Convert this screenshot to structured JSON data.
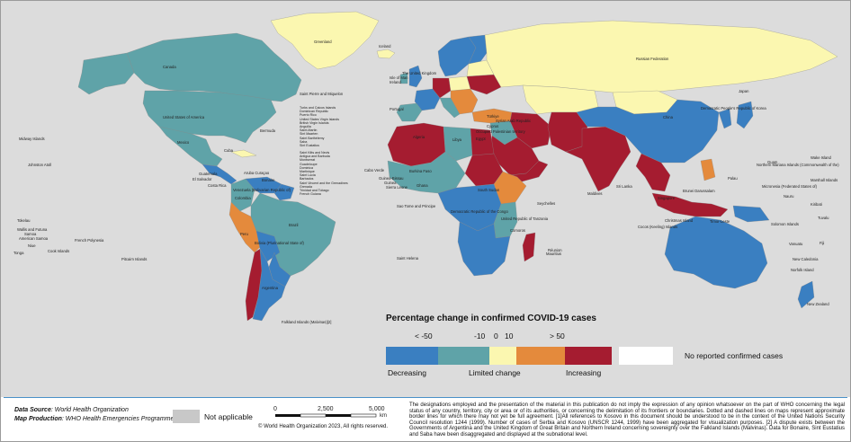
{
  "map": {
    "colors": {
      "ocean": "#dcdcdc",
      "decreasing_strong": "#3a7fc1",
      "decreasing": "#5fa3a8",
      "limited": "#fbf7b0",
      "increasing_mod": "#e48a3c",
      "increasing_strong": "#a51c30",
      "no_reported": "#ffffff",
      "not_applicable": "#c8c8c8"
    },
    "labels": {
      "greenland": "Greenland",
      "iceland": "Iceland",
      "russia": "Russian Federation",
      "canada": "Canada",
      "usa": "United States of America",
      "spm": "Saint Pierre and Miquelon",
      "bermuda": "Bermuda",
      "mexico": "Mexico",
      "midway": "Midway Islands",
      "johnston": "Johnston Atoll",
      "cuba": "Cuba",
      "guatemala": "Guatemala",
      "elsalvador": "El Salvador",
      "costarica": "Costa Rica",
      "caribbean_list": "Turks and Caicos Islands\nDominican Republic\nPuerto Rico\nUnited States Virgin Islands\nBritish Virgin Islands\nAnguilla\nSaint-Martin\nSint Maarten\nSaint Barthélemy\nSaba\nSint Eustatius",
      "caribbean_list2": "Saint Kitts and Nevis\nAntigua and Barbuda\nMontserrat\nGuadeloupe\nDominica\nMartinique\nSaint Lucia\nBarbados\nSaint Vincent and the Grenadines\nGrenada\nTrinidad and Tobago\nFrench Guiana",
      "aruba": "Aruba Curaçao",
      "bonaire": "Bonaire",
      "venezuela": "Venezuela (Bolivarian Republic of)",
      "colombia": "Colombia",
      "brazil": "Brazil",
      "bolivia": "Bolivia (Plurinational State of)",
      "peru": "Peru",
      "argentina": "Argentina",
      "falklands": "Falkland Islands (Malvinas)[2]",
      "caboverde": "Cabo Verde",
      "tokelau": "Tokelau",
      "wallis": "Wallis and Futuna",
      "samoa": "Samoa",
      "amsamoa": "American Samoa",
      "niue": "Niue",
      "tonga": "Tonga",
      "cook": "Cook Islands",
      "frpoly": "French Polynesia",
      "pitcairn": "Pitcairn Islands",
      "uk": "The United Kingdom",
      "ireland": "Ireland",
      "isleofman": "Isle of Man",
      "portugal": "Portugal",
      "algeria": "Algeria",
      "libya": "Libya",
      "egypt": "Egypt",
      "cyprus": "Cyprus",
      "turkiye": "Türkiye",
      "syria": "Syrian Arab Republic",
      "opt": "Occupied Palestinian territory",
      "guineabissau": "Guinea-Bissau",
      "guinea": "Guinea",
      "sierraleone": "Sierra Leone",
      "burkina": "Burkina Faso",
      "ghana": "Ghana",
      "southsudan": "South Sudan",
      "saotome": "Sao Tome and Principe",
      "drc": "Democratic Republic of the Congo",
      "tanzania": "United Republic of Tanzania",
      "seychelles": "Seychelles",
      "reunion": "Réunion",
      "mauritius": "Mauritius",
      "sainthelena": "Saint Helena",
      "comoros": "Comoros",
      "maldives": "Maldives",
      "srilanka": "Sri Lanka",
      "china": "China",
      "korea": "Democratic People's Republic of Korea",
      "japan": "Japan",
      "guam": "Guam",
      "nmarianas": "Northern Mariana Islands (Commonwealth of the)",
      "wake": "Wake Island",
      "fsm": "Micronesia (Federated States of)",
      "marshall": "Marshall Islands",
      "nauru": "Nauru",
      "kiribati": "Kiribati",
      "solomon": "Solomon Islands",
      "tuvalu": "Tuvalu",
      "fiji": "Fiji",
      "vanuatu": "Vanuatu",
      "newcaledonia": "New Caledonia",
      "norfolk": "Norfolk Island",
      "newzealand": "New Zealand",
      "singapore": "Singapore",
      "cocos": "Cocos (Keeling) Islands",
      "bruneidarussalam": "Brunei Darussalam",
      "timorleste": "Timor-Leste",
      "christmas": "Christmas Island",
      "palau": "Palau"
    }
  },
  "legend": {
    "title": "Percentage change in confirmed COVID-19 cases",
    "ticks": [
      "< -50",
      "-10",
      "0",
      "10",
      "> 50"
    ],
    "categories": [
      "Decreasing",
      "Limited change",
      "Increasing"
    ],
    "no_reported": "No reported confirmed cases"
  },
  "footer": {
    "data_source_label": "Data Source",
    "data_source_value": ": World Health Organization",
    "map_production_label": "Map Production",
    "map_production_value": ": WHO Health Emergencies Programme",
    "not_applicable": "Not applicable",
    "scale_labels": [
      "0",
      "2,500",
      "5,000"
    ],
    "scale_unit": "km",
    "copyright": "© World Health Organization 2023, All rights reserved.",
    "disclaimer": "The designations employed and the presentation of the material in this publication do not imply the expression of any opinion whatsoever on the part of WHO concerning the legal status of any country, territory, city or area or of its authorities, or concerning the delimitation of its frontiers or boundaries. Dotted and dashed lines on maps represent approximate border lines for which there may not yet be full agreement. [1]All references to Kosovo in this document should be understood to be in the context of the United Nations Security Council resolution 1244 (1999). Number of cases of Serbia and Kosovo (UNSCR 1244, 1999) have been aggregated for visualization purposes. [2] A dispute exists between the Governments of Argentina and the United Kingdom of Great Britain and Northern Ireland concerning sovereignty over the Falkland Islands (Malvinas). Data for Bonaire, Sint Eustatius and Saba have been disaggregated and displayed at the subnational level."
  }
}
